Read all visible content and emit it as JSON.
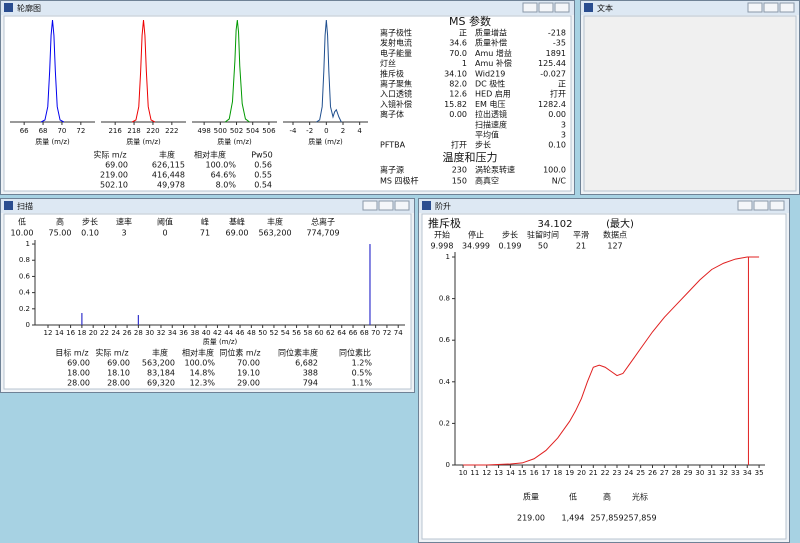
{
  "windows": {
    "profile": {
      "title": "轮廓图",
      "panels": [
        {
          "xlim": [
            64.5,
            73.5
          ],
          "ylim": [
            0,
            1
          ],
          "xticks": [
            66,
            68,
            70,
            72
          ],
          "xlabel": "质量 (m/z)",
          "color": "#0000ee",
          "x": [
            67.8,
            68.2,
            68.5,
            68.7,
            68.85,
            69,
            69.15,
            69.3,
            69.5,
            69.8,
            70.2
          ],
          "y": [
            0,
            0.02,
            0.15,
            0.5,
            0.85,
            1,
            0.85,
            0.5,
            0.15,
            0.02,
            0
          ]
        },
        {
          "xlim": [
            214.5,
            223.5
          ],
          "ylim": [
            0,
            1
          ],
          "xticks": [
            216,
            218,
            220,
            222
          ],
          "xlabel": "质量 (m/z)",
          "color": "#ee0000",
          "x": [
            217.8,
            218.2,
            218.5,
            218.7,
            218.85,
            219,
            219.15,
            219.3,
            219.5,
            219.8,
            220.2
          ],
          "y": [
            0,
            0.02,
            0.15,
            0.5,
            0.85,
            1,
            0.85,
            0.5,
            0.15,
            0.02,
            0
          ]
        },
        {
          "xlim": [
            496.5,
            507
          ],
          "ylim": [
            0,
            1
          ],
          "xticks": [
            498,
            500,
            502,
            504,
            506
          ],
          "xlabel": "质量 (m/z)",
          "color": "#009900",
          "x": [
            500.6,
            501.1,
            501.5,
            501.8,
            501.95,
            502.1,
            502.25,
            502.4,
            502.7,
            503.1,
            503.6
          ],
          "y": [
            0,
            0.03,
            0.2,
            0.6,
            0.9,
            1,
            0.88,
            0.55,
            0.18,
            0.03,
            0
          ]
        },
        {
          "xlim": [
            -5.2,
            5
          ],
          "ylim": [
            0,
            1
          ],
          "xticks": [
            -4,
            -2,
            0,
            2,
            4
          ],
          "xlabel": "质量 (m/z)",
          "color": "#1f4f8f",
          "x": [
            -1.2,
            -0.8,
            -0.5,
            -0.3,
            -0.15,
            0,
            0.15,
            0.3,
            0.5,
            0.8,
            1.0,
            1.2,
            1.5,
            1.8
          ],
          "y": [
            0,
            0.02,
            0.15,
            0.5,
            0.85,
            1,
            0.85,
            0.5,
            0.15,
            0.05,
            0.1,
            0.12,
            0.05,
            0
          ]
        }
      ],
      "table": {
        "headers": [
          "实际 m/z",
          "丰度",
          "相对丰度",
          "Pw50"
        ],
        "row_colors": [
          "#0000cc",
          "#dd0000",
          "#007700"
        ],
        "rows": [
          [
            "69.00",
            "626,115",
            "100.0%",
            "0.56"
          ],
          [
            "219.00",
            "416,448",
            "64.6%",
            "0.55"
          ],
          [
            "502.10",
            "49,978",
            "8.0%",
            "0.54"
          ]
        ]
      },
      "ms_title": "MS 参数",
      "params_left": [
        [
          "离子极性",
          "正"
        ],
        [
          "发射电流",
          "34.6"
        ],
        [
          "电子能量",
          "70.0"
        ],
        [
          "灯丝",
          "1"
        ],
        [
          "推斥极",
          "34.10"
        ],
        [
          "离子聚焦",
          "82.0"
        ],
        [
          "入口透镜",
          "12.6"
        ],
        [
          "入镜补偿",
          "15.82"
        ],
        [
          "离子体",
          "0.00"
        ],
        [
          "PFTBA",
          "打开"
        ]
      ],
      "params_right": [
        [
          "质量增益",
          "-218"
        ],
        [
          "质量补偿",
          "-35"
        ],
        [
          "Amu 增益",
          "1891"
        ],
        [
          "Amu 补偿",
          "125.44"
        ],
        [
          "Wid219",
          "-0.027"
        ],
        [
          "DC 极性",
          "正"
        ],
        [
          "HED 启用",
          "打开"
        ],
        [
          "EM 电压",
          "1282.4"
        ],
        [
          "拉出透镜",
          "0.00"
        ],
        [
          "扫描速度",
          "3"
        ],
        [
          "平均值",
          "3"
        ],
        [
          "步长",
          "0.10"
        ]
      ],
      "temp_title": "温度和压力",
      "temps": [
        [
          "离子源",
          "230",
          "涡轮泵转速",
          "100.0"
        ],
        [
          "MS 四极杆",
          "150",
          "高真空",
          "N/C"
        ]
      ]
    },
    "text": {
      "title": "文本"
    },
    "scan": {
      "title": "扫描",
      "headers": [
        "低",
        "高",
        "步长",
        "速率",
        "阈值",
        "峰",
        "基峰",
        "丰度",
        "总离子"
      ],
      "values": [
        "10.00",
        "75.00",
        "0.10",
        "3",
        "0",
        "71",
        "69.00",
        "563,200",
        "774,709"
      ],
      "chart": {
        "xlim": [
          9.7,
          75.2
        ],
        "ylim": [
          0,
          1.05
        ],
        "xticks": [
          12,
          14,
          16,
          18,
          20,
          22,
          24,
          26,
          28,
          30,
          32,
          34,
          36,
          38,
          40,
          42,
          44,
          46,
          48,
          50,
          52,
          54,
          56,
          58,
          60,
          62,
          64,
          66,
          68,
          70,
          72,
          74
        ],
        "yticks": [
          0,
          0.2,
          0.4,
          0.6,
          0.8,
          1
        ],
        "xlabel": "质量 (m/z)",
        "color": "#3333cc",
        "x": [
          18,
          28,
          69
        ],
        "values": [
          0.148,
          0.123,
          1
        ]
      },
      "table": {
        "headers": [
          "目标 m/z",
          "实际 m/z",
          "丰度",
          "相对丰度",
          "同位素 m/z",
          "同位素丰度",
          "同位素比"
        ],
        "row_colors": [
          "#0000cc",
          "#dd0000",
          "#007700"
        ],
        "rows": [
          [
            "69.00",
            "69.00",
            "563,200",
            "100.0%",
            "70.00",
            "6,682",
            "1.2%"
          ],
          [
            "18.00",
            "18.10",
            "83,184",
            "14.8%",
            "19.10",
            "388",
            "0.5%"
          ],
          [
            "28.00",
            "28.00",
            "69,320",
            "12.3%",
            "29.00",
            "794",
            "1.1%"
          ]
        ]
      }
    },
    "ramp": {
      "title": "阶升",
      "parameter": "推斥极",
      "value": 34.102,
      "mode": "(最大)",
      "headers": [
        "开始",
        "停止",
        "步长",
        "驻留时间",
        "平滑",
        "数据点"
      ],
      "values": [
        "9.998",
        "34.999",
        "0.199",
        "50",
        "21",
        "127"
      ],
      "chart": {
        "xlim": [
          9.32,
          35.5
        ],
        "ylim": [
          0,
          1
        ],
        "xticks": [
          10,
          11,
          12,
          13,
          14,
          15,
          16,
          17,
          18,
          19,
          20,
          21,
          22,
          23,
          24,
          25,
          26,
          27,
          28,
          29,
          30,
          31,
          32,
          33,
          34,
          35
        ],
        "yticks": [
          0,
          0.2,
          0.4,
          0.6,
          0.8,
          1
        ],
        "color": "#e02020",
        "x": [
          10,
          12,
          14,
          15,
          16,
          17,
          18,
          19,
          19.5,
          20,
          20.5,
          21,
          21.5,
          22,
          22.5,
          23,
          23.5,
          24,
          25,
          26,
          27,
          28,
          29,
          30,
          31,
          32,
          33,
          34,
          35
        ],
        "y": [
          0,
          0,
          0.005,
          0.01,
          0.03,
          0.07,
          0.13,
          0.21,
          0.26,
          0.32,
          0.4,
          0.47,
          0.48,
          0.47,
          0.45,
          0.43,
          0.44,
          0.48,
          0.56,
          0.64,
          0.71,
          0.77,
          0.83,
          0.89,
          0.94,
          0.97,
          0.99,
          1,
          1
        ]
      },
      "footer_headers": [
        "质量",
        "低",
        "高",
        "光标"
      ],
      "footer_values": [
        "219.00",
        "1,494",
        "257,859",
        "257,859"
      ],
      "footer_color": "#dd0000"
    }
  }
}
